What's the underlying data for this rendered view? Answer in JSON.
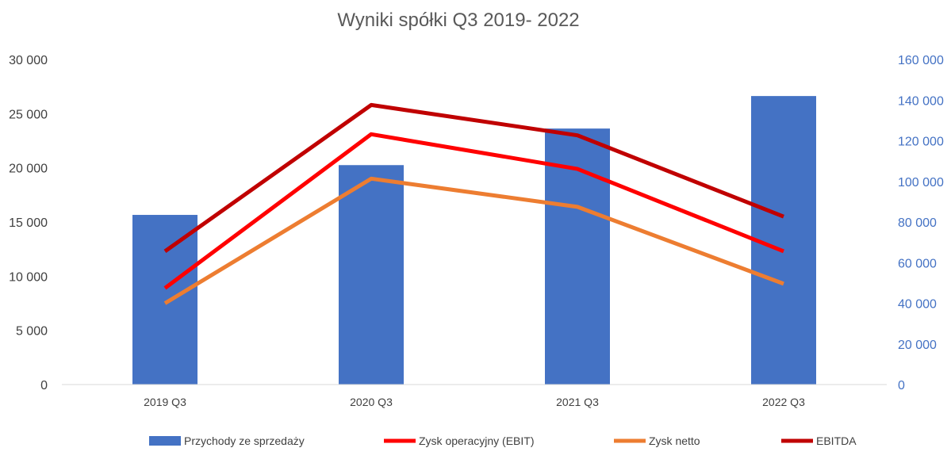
{
  "chart_data": {
    "type": "bar",
    "title": "Wyniki spółki Q3 2019- 2022",
    "categories": [
      "2019 Q3",
      "2020 Q3",
      "2021 Q3",
      "2022 Q3"
    ],
    "xlabel": "",
    "ylabel": "",
    "ylim": [
      0,
      30000
    ],
    "y2lim": [
      0,
      160000
    ],
    "y_ticks": [
      "0",
      "5 000",
      "10 000",
      "15 000",
      "20 000",
      "25 000",
      "30 000"
    ],
    "y2_ticks": [
      "0",
      "20 000",
      "40 000",
      "60 000",
      "80 000",
      "100 000",
      "120 000",
      "140 000",
      "160 000"
    ],
    "grid": false,
    "legend_position": "bottom",
    "series": [
      {
        "name": "Przychody ze sprzedaży",
        "type": "bar",
        "axis": "right",
        "color": "#4472C4",
        "values": [
          83500,
          108000,
          126000,
          142000
        ]
      },
      {
        "name": "Zysk operacyjny (EBIT)",
        "type": "line",
        "axis": "left",
        "color": "#FF0000",
        "values": [
          8900,
          23100,
          19900,
          12300
        ]
      },
      {
        "name": "Zysk netto",
        "type": "line",
        "axis": "left",
        "color": "#ED7D31",
        "values": [
          7500,
          19000,
          16400,
          9300
        ]
      },
      {
        "name": "EBITDA",
        "type": "line",
        "axis": "left",
        "color": "#C00000",
        "values": [
          12300,
          25800,
          23000,
          15500
        ]
      }
    ]
  }
}
